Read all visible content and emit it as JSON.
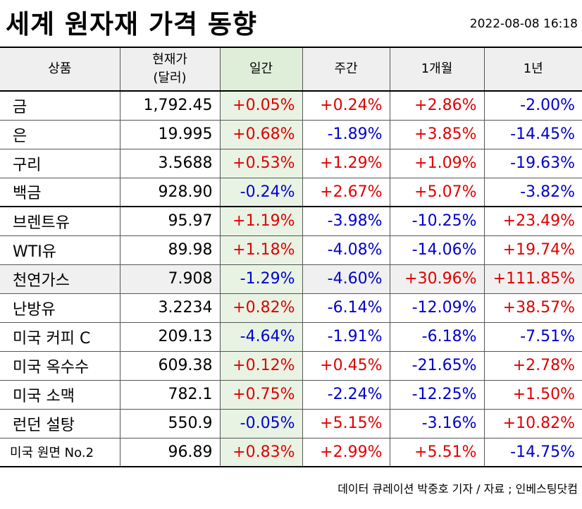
{
  "title": "세계 원자재 가격 동향",
  "timestamp": "2022-08-08 16:18",
  "columns": {
    "product": "상품",
    "price_line1": "현재가",
    "price_line2": "(달러)",
    "day": "일간",
    "week": "주간",
    "month": "1개월",
    "year": "1년"
  },
  "rows": [
    {
      "name": "금",
      "price": "1,792.45",
      "day": "+0.05%",
      "week": "+0.24%",
      "month": "+2.86%",
      "year": "-2.00%"
    },
    {
      "name": "은",
      "price": "19.995",
      "day": "+0.68%",
      "week": "-1.89%",
      "month": "+3.85%",
      "year": "-14.45%"
    },
    {
      "name": "구리",
      "price": "3.5688",
      "day": "+0.53%",
      "week": "+1.29%",
      "month": "+1.09%",
      "year": "-19.63%"
    },
    {
      "name": "백금",
      "price": "928.90",
      "day": "-0.24%",
      "week": "+2.67%",
      "month": "+5.07%",
      "year": "-3.82%"
    },
    {
      "name": "브렌트유",
      "price": "95.97",
      "day": "+1.19%",
      "week": "-3.98%",
      "month": "-10.25%",
      "year": "+23.49%"
    },
    {
      "name": "WTI유",
      "price": "89.98",
      "day": "+1.18%",
      "week": "-4.08%",
      "month": "-14.06%",
      "year": "+19.74%"
    },
    {
      "name": "천연가스",
      "price": "7.908",
      "day": "-1.29%",
      "week": "-4.60%",
      "month": "+30.96%",
      "year": "+111.85%"
    },
    {
      "name": "난방유",
      "price": "3.2234",
      "day": "+0.82%",
      "week": "-6.14%",
      "month": "-12.09%",
      "year": "+38.57%"
    },
    {
      "name": "미국 커피 C",
      "price": "209.13",
      "day": "-4.64%",
      "week": "-1.91%",
      "month": "-6.18%",
      "year": "-7.51%"
    },
    {
      "name": "미국 옥수수",
      "price": "609.38",
      "day": "+0.12%",
      "week": "+0.45%",
      "month": "-21.65%",
      "year": "+2.78%"
    },
    {
      "name": "미국 소맥",
      "price": "782.1",
      "day": "+0.75%",
      "week": "-2.24%",
      "month": "-12.25%",
      "year": "+1.50%"
    },
    {
      "name": "런던 설탕",
      "price": "550.9",
      "day": "-0.05%",
      "week": "+5.15%",
      "month": "-3.16%",
      "year": "+10.82%"
    },
    {
      "name": "미국 원면 No.2",
      "price": "96.89",
      "day": "+0.83%",
      "week": "+2.99%",
      "month": "+5.51%",
      "year": "-14.75%"
    }
  ],
  "colors": {
    "positive": "#e00000",
    "negative": "#0000cc",
    "day_column_bg": "#e8f3e4",
    "header_bg": "#efefef"
  },
  "source": "데이터 큐레이션 박중호 기자 / 자료 ; 인베스팅닷컴"
}
